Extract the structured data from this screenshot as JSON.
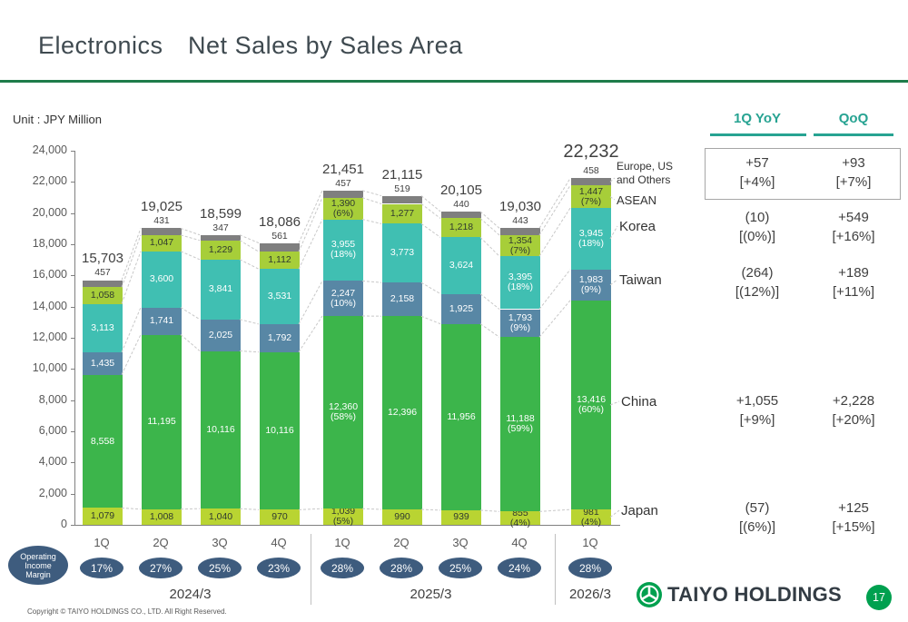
{
  "title": "Electronics　Net Sales by Sales Area",
  "unit_label": "Unit : JPY Million",
  "chart_data": {
    "type": "bar",
    "stacked": true,
    "title": "Electronics Net Sales by Sales Area",
    "ylabel": "JPY Million",
    "ylim": [
      0,
      24000
    ],
    "ytick_step": 2000,
    "grid": false,
    "categories": [
      "1Q",
      "2Q",
      "3Q",
      "4Q",
      "1Q",
      "2Q",
      "3Q",
      "4Q",
      "1Q"
    ],
    "fiscal_years": [
      {
        "label": "2024/3",
        "bars": [
          0,
          3
        ]
      },
      {
        "label": "2025/3",
        "bars": [
          4,
          7
        ]
      },
      {
        "label": "2026/3",
        "bars": [
          8,
          8
        ]
      }
    ],
    "series": [
      {
        "key": "japan",
        "name": "Japan",
        "color": "#b9d432",
        "text_color": "#303a30",
        "values": [
          1079,
          1008,
          1040,
          970,
          1039,
          990,
          939,
          855,
          981
        ],
        "pct": [
          null,
          null,
          null,
          null,
          "(5%)",
          null,
          null,
          "(4%)",
          "(4%)"
        ]
      },
      {
        "key": "china",
        "name": "China",
        "color": "#3cb54b",
        "text_color": "#ffffff",
        "values": [
          8558,
          11195,
          10116,
          10116,
          12360,
          12396,
          11956,
          11188,
          13416
        ],
        "pct": [
          null,
          null,
          null,
          null,
          "(58%)",
          null,
          null,
          "(59%)",
          "(60%)"
        ]
      },
      {
        "key": "taiwan",
        "name": "Taiwan",
        "color": "#5887a5",
        "text_color": "#ffffff",
        "values": [
          1435,
          1741,
          2025,
          1792,
          2247,
          2158,
          1925,
          1793,
          1983
        ],
        "pct": [
          null,
          null,
          null,
          null,
          "(10%)",
          null,
          null,
          "(9%)",
          "(9%)"
        ]
      },
      {
        "key": "korea",
        "name": "Korea",
        "color": "#40bfb2",
        "text_color": "#ffffff",
        "values": [
          3113,
          3600,
          3841,
          3531,
          3955,
          3773,
          3624,
          3395,
          3945
        ],
        "pct": [
          null,
          null,
          null,
          null,
          "(18%)",
          null,
          null,
          "(18%)",
          "(18%)"
        ]
      },
      {
        "key": "asean",
        "name": "ASEAN",
        "color": "#a7ce39",
        "text_color": "#303a30",
        "values": [
          1058,
          1047,
          1229,
          1112,
          1390,
          1277,
          1218,
          1354,
          1447
        ],
        "pct": [
          null,
          null,
          null,
          null,
          "(6%)",
          null,
          null,
          "(7%)",
          "(7%)"
        ]
      },
      {
        "key": "europe_us_others",
        "name": "Europe, US and Others",
        "color": "#7f7f7f",
        "text_color": "#ffffff",
        "values": [
          457,
          431,
          347,
          561,
          457,
          519,
          440,
          443,
          458
        ],
        "label_above": true
      }
    ],
    "totals": [
      15703,
      19025,
      18599,
      18086,
      21451,
      21115,
      20105,
      19030,
      22232
    ],
    "operating_income_margin": [
      "17%",
      "27%",
      "25%",
      "23%",
      "28%",
      "28%",
      "25%",
      "24%",
      "28%"
    ],
    "margin_badge_label": "Operating Income Margin"
  },
  "region_labels": [
    "Japan",
    "China",
    "Taiwan",
    "Korea",
    "ASEAN",
    "Europe, US\nand Others"
  ],
  "table": {
    "headers": [
      "1Q YoY",
      "QoQ"
    ],
    "rows": [
      {
        "key": "asean",
        "region": "ASEAN",
        "yoy": "+57",
        "yoy_pct": "[+4%]",
        "qoq": "+93",
        "qoq_pct": "[+7%]",
        "boxed": true
      },
      {
        "key": "korea",
        "region": "Korea",
        "yoy": "(10)",
        "yoy_pct": "[(0%)]",
        "qoq": "+549",
        "qoq_pct": "[+16%]",
        "boxed": false
      },
      {
        "key": "taiwan",
        "region": "Taiwan",
        "yoy": "(264)",
        "yoy_pct": "[(12%)]",
        "qoq": "+189",
        "qoq_pct": "[+11%]",
        "boxed": false
      },
      {
        "key": "china",
        "region": "China",
        "yoy": "+1,055",
        "yoy_pct": "[+9%]",
        "qoq": "+2,228",
        "qoq_pct": "[+20%]",
        "boxed": false
      },
      {
        "key": "japan",
        "region": "Japan",
        "yoy": "(57)",
        "yoy_pct": "[(6%)]",
        "qoq": "+125",
        "qoq_pct": "[+15%]",
        "boxed": false
      }
    ]
  },
  "footer": {
    "copyright": "Copyright © TAIYO HOLDINGS CO., LTD.  All Right Reserved.",
    "logo_text": "TAIYO HOLDINGS",
    "page_number": "17"
  },
  "colors": {
    "accent_green": "#1e7c4a",
    "badge": "#3e5c7e",
    "table_header": "#27a392",
    "logo_green": "#00a04f",
    "connector": "#c8c8c8"
  }
}
